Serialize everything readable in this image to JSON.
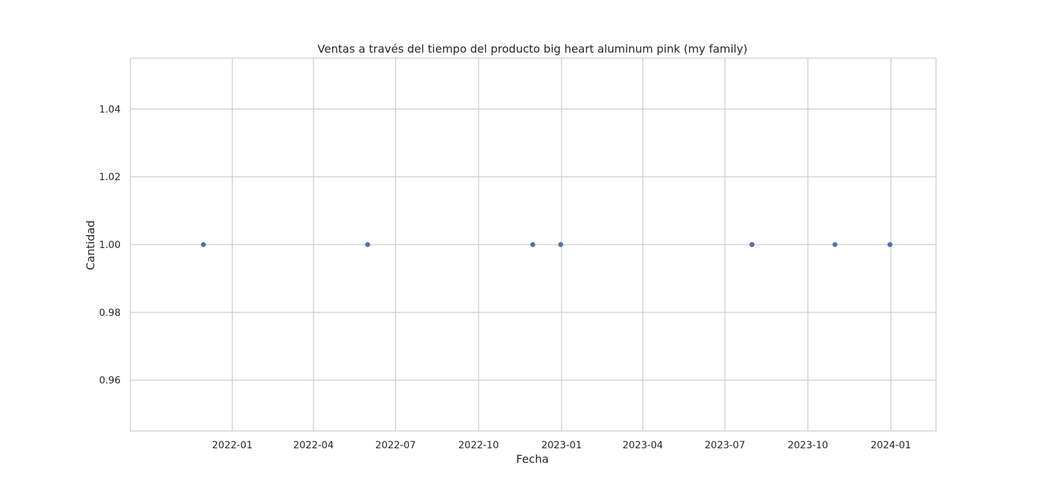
{
  "chart_data": {
    "type": "scatter",
    "title": "Ventas a través del tiempo del producto big heart aluminum pink (my family)",
    "xlabel": "Fecha",
    "ylabel": "Cantidad",
    "x_type": "date",
    "xlim": [
      "2021-09-10",
      "2024-02-20"
    ],
    "ylim": [
      0.945,
      1.055
    ],
    "x_ticks": [
      "2022-01-01",
      "2022-04-01",
      "2022-07-01",
      "2022-10-01",
      "2023-01-01",
      "2023-04-01",
      "2023-07-01",
      "2023-10-01",
      "2024-01-01"
    ],
    "x_tick_labels": [
      "2022-01",
      "2022-04",
      "2022-07",
      "2022-10",
      "2023-01",
      "2023-04",
      "2023-07",
      "2023-10",
      "2024-01"
    ],
    "y_ticks": [
      0.96,
      0.98,
      1.0,
      1.02,
      1.04
    ],
    "y_tick_labels": [
      "0.96",
      "0.98",
      "1.00",
      "1.02",
      "1.04"
    ],
    "grid": true,
    "points": [
      {
        "x": "2021-11-30",
        "y": 1
      },
      {
        "x": "2022-05-31",
        "y": 1
      },
      {
        "x": "2022-11-30",
        "y": 1
      },
      {
        "x": "2022-12-31",
        "y": 1
      },
      {
        "x": "2023-07-31",
        "y": 1
      },
      {
        "x": "2023-10-31",
        "y": 1
      },
      {
        "x": "2023-12-31",
        "y": 1
      }
    ],
    "colors": {
      "point": "#4c72b0",
      "grid": "#cccccc",
      "frame": "#cccccc"
    }
  }
}
